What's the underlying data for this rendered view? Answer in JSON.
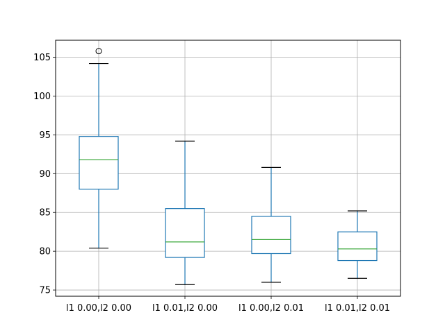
{
  "chart_data": {
    "type": "box",
    "title": "",
    "xlabel": "",
    "ylabel": "",
    "categories": [
      "l1 0.00,l2 0.00",
      "l1 0.01,l2 0.00",
      "l1 0.00,l2 0.01",
      "l1 0.01,l2 0.01"
    ],
    "boxes": [
      {
        "whisker_low": 80.4,
        "q1": 88.0,
        "median": 91.8,
        "q3": 94.8,
        "whisker_high": 104.2,
        "outliers": [
          105.8
        ]
      },
      {
        "whisker_low": 75.7,
        "q1": 79.2,
        "median": 81.2,
        "q3": 85.5,
        "whisker_high": 94.2,
        "outliers": []
      },
      {
        "whisker_low": 76.0,
        "q1": 79.7,
        "median": 81.5,
        "q3": 84.5,
        "whisker_high": 90.8,
        "outliers": []
      },
      {
        "whisker_low": 76.5,
        "q1": 78.8,
        "median": 80.3,
        "q3": 82.5,
        "whisker_high": 85.2,
        "outliers": []
      }
    ],
    "ylim": [
      74.2,
      107.2
    ],
    "yticks": [
      75,
      80,
      85,
      90,
      95,
      100,
      105
    ],
    "grid": true,
    "colors": {
      "box": "#1f77b4",
      "median": "#2ca02c",
      "whisker_cap": "#000000",
      "grid": "#b0b0b0",
      "outlier": "#000000"
    }
  }
}
